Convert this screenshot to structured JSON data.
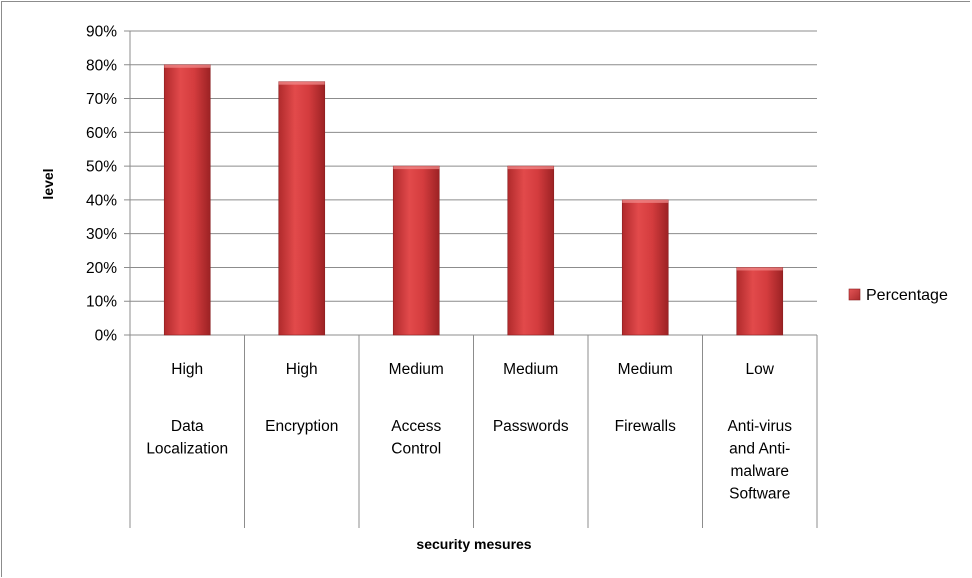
{
  "chart_data": {
    "type": "bar",
    "categories": [
      [
        "High",
        "Data",
        "Localization"
      ],
      [
        "High",
        "Encryption"
      ],
      [
        "Medium",
        "Access",
        "Control"
      ],
      [
        "Medium",
        "Passwords"
      ],
      [
        "Medium",
        "Firewalls"
      ],
      [
        "Low",
        "Anti-virus",
        "and Anti-",
        "malware",
        "Software"
      ]
    ],
    "series": [
      {
        "name": "Percentage",
        "values": [
          0.8,
          0.75,
          0.5,
          0.5,
          0.4,
          0.2
        ]
      }
    ],
    "ylim": [
      0,
      0.9
    ],
    "yticks": [
      "0%",
      "10%",
      "20%",
      "30%",
      "40%",
      "50%",
      "60%",
      "70%",
      "80%",
      "90%"
    ],
    "xlabel": "security mesures",
    "ylabel": "level",
    "grid": true,
    "legend_position": "right",
    "bar_color": "#c0393b"
  }
}
